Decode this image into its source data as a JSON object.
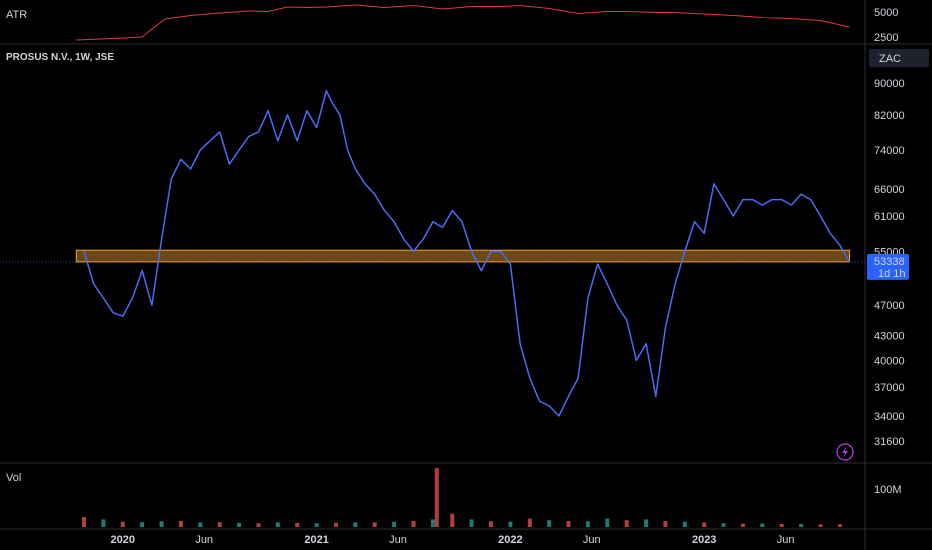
{
  "chart_data": [
    {
      "type": "line",
      "panel": "atr",
      "title": "ATR",
      "ylim": [
        2000,
        6000
      ],
      "yticks": [
        2500,
        5000
      ],
      "color": "#e03a3a",
      "x": [
        2019.76,
        2019.95,
        2020.1,
        2020.15,
        2020.22,
        2020.35,
        2020.5,
        2020.65,
        2020.75,
        2020.85,
        2020.95,
        2021.05,
        2021.2,
        2021.35,
        2021.5,
        2021.65,
        2021.8,
        2021.95,
        2022.05,
        2022.2,
        2022.35,
        2022.5,
        2022.6,
        2022.75,
        2022.85,
        2023.0,
        2023.15,
        2023.3,
        2023.45,
        2023.6,
        2023.75
      ],
      "values": [
        2200,
        2350,
        2500,
        3300,
        4300,
        4650,
        4900,
        5100,
        5050,
        5500,
        5450,
        5500,
        5700,
        5450,
        5650,
        5300,
        5550,
        5550,
        5650,
        5350,
        4850,
        5050,
        5050,
        4950,
        4950,
        4800,
        4650,
        4450,
        4350,
        4150,
        3500
      ]
    },
    {
      "type": "line",
      "panel": "price",
      "title": "PROSUS N.V., 1W, JSE",
      "currency": "ZAC",
      "log_scale": true,
      "color": "#4a6cf7",
      "yticks": [
        90000,
        82000,
        74000,
        66000,
        61000,
        55000,
        47000,
        43000,
        40000,
        37000,
        34000,
        31600
      ],
      "ylim_approx": [
        29500,
        100000
      ],
      "x": [
        2019.8,
        2019.85,
        2019.9,
        2019.95,
        2020.0,
        2020.05,
        2020.1,
        2020.15,
        2020.2,
        2020.25,
        2020.3,
        2020.35,
        2020.4,
        2020.45,
        2020.5,
        2020.55,
        2020.6,
        2020.65,
        2020.7,
        2020.75,
        2020.8,
        2020.85,
        2020.9,
        2020.95,
        2021.0,
        2021.05,
        2021.08,
        2021.12,
        2021.16,
        2021.2,
        2021.25,
        2021.3,
        2021.35,
        2021.4,
        2021.45,
        2021.5,
        2021.55,
        2021.6,
        2021.65,
        2021.7,
        2021.75,
        2021.8,
        2021.85,
        2021.9,
        2021.95,
        2022.0,
        2022.05,
        2022.1,
        2022.15,
        2022.2,
        2022.25,
        2022.3,
        2022.35,
        2022.4,
        2022.45,
        2022.5,
        2022.55,
        2022.6,
        2022.65,
        2022.7,
        2022.75,
        2022.8,
        2022.85,
        2022.9,
        2022.95,
        2023.0,
        2023.05,
        2023.1,
        2023.15,
        2023.2,
        2023.25,
        2023.3,
        2023.35,
        2023.4,
        2023.45,
        2023.5,
        2023.55,
        2023.6,
        2023.65,
        2023.7,
        2023.75
      ],
      "values": [
        55000,
        50000,
        48000,
        46000,
        45500,
        48000,
        52000,
        47000,
        57000,
        68000,
        72000,
        70000,
        74000,
        76000,
        78000,
        71000,
        74000,
        77000,
        78000,
        83000,
        76000,
        82000,
        76000,
        83000,
        79000,
        88000,
        85000,
        82000,
        74000,
        70000,
        67000,
        65000,
        62000,
        60000,
        57000,
        55000,
        57000,
        60000,
        59000,
        62000,
        60000,
        55000,
        52000,
        55000,
        55000,
        53000,
        42000,
        38000,
        35500,
        35000,
        34000,
        36000,
        38000,
        48000,
        53000,
        50000,
        47000,
        45000,
        40000,
        42000,
        36000,
        44000,
        50000,
        55000,
        60000,
        58000,
        67000,
        64000,
        61000,
        64000,
        64000,
        63000,
        64000,
        64000,
        63000,
        65000,
        64000,
        61000,
        58000,
        56000,
        53338
      ],
      "last_value": "53338",
      "last_label_sub": "1d 1h",
      "support_zone": {
        "low": 53338,
        "high": 55200,
        "x_start": 2019.76,
        "x_end": 2023.75,
        "color": "#f0a030"
      }
    },
    {
      "type": "bar",
      "panel": "volume",
      "title": "Vol",
      "yticks": [
        "100M"
      ],
      "ylim": [
        0,
        150
      ],
      "up_color": "#26a69a",
      "down_color": "#ef5350",
      "x": [
        2019.8,
        2019.9,
        2020.0,
        2020.1,
        2020.2,
        2020.3,
        2020.4,
        2020.5,
        2020.6,
        2020.7,
        2020.8,
        2020.9,
        2021.0,
        2021.1,
        2021.2,
        2021.3,
        2021.4,
        2021.5,
        2021.6,
        2021.62,
        2021.7,
        2021.8,
        2021.9,
        2022.0,
        2022.1,
        2022.2,
        2022.3,
        2022.4,
        2022.5,
        2022.6,
        2022.7,
        2022.8,
        2022.9,
        2023.0,
        2023.1,
        2023.2,
        2023.3,
        2023.4,
        2023.5,
        2023.6,
        2023.7
      ],
      "values": [
        26,
        20,
        14,
        13,
        15,
        16,
        12,
        13,
        11,
        10,
        12,
        11,
        10,
        11,
        12,
        12,
        14,
        16,
        20,
        155,
        35,
        20,
        15,
        14,
        22,
        18,
        16,
        15,
        22,
        18,
        20,
        16,
        14,
        12,
        10,
        9,
        9,
        8,
        8,
        7,
        7
      ],
      "up": [
        false,
        true,
        false,
        true,
        true,
        false,
        true,
        false,
        true,
        false,
        true,
        false,
        true,
        false,
        true,
        false,
        true,
        false,
        true,
        false,
        false,
        true,
        false,
        true,
        false,
        true,
        false,
        true,
        true,
        false,
        true,
        false,
        true,
        false,
        true,
        false,
        true,
        false,
        true,
        false,
        false
      ]
    }
  ],
  "x_axis": {
    "ticks": [
      {
        "x": 2020.0,
        "label": "2020",
        "bold": true
      },
      {
        "x": 2020.42,
        "label": "Jun",
        "bold": false
      },
      {
        "x": 2021.0,
        "label": "2021",
        "bold": true
      },
      {
        "x": 2021.42,
        "label": "Jun",
        "bold": false
      },
      {
        "x": 2022.0,
        "label": "2022",
        "bold": true
      },
      {
        "x": 2022.42,
        "label": "Jun",
        "bold": false
      },
      {
        "x": 2023.0,
        "label": "2023",
        "bold": true
      },
      {
        "x": 2023.42,
        "label": "Jun",
        "bold": false
      }
    ]
  },
  "colors": {
    "background": "#000000",
    "divider": "#2a2e39",
    "price_tag": "#2962ff",
    "text": "#d1d4dc",
    "flash_icon": "#b13fd9"
  }
}
